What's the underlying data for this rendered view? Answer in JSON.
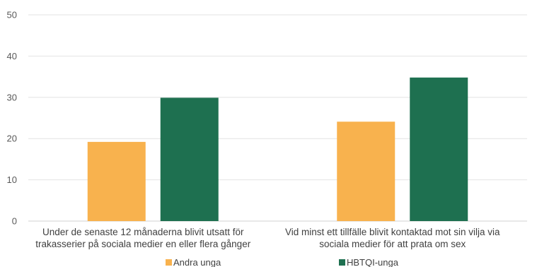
{
  "chart_data": {
    "type": "bar",
    "title": "",
    "xlabel": "",
    "ylabel": "",
    "ylim": [
      0,
      50
    ],
    "yticks": [
      0,
      10,
      20,
      30,
      40,
      50
    ],
    "grid": true,
    "legend": "bottom",
    "categories": [
      [
        "Under de senaste 12  månaderna blivit utsatt för",
        "trakasserier på sociala medier en eller flera gånger"
      ],
      [
        "Vid minst ett tillfälle blivit kontaktad mot sin vilja via",
        "sociala medier för att prata om sex"
      ]
    ],
    "series": [
      {
        "name": "Andra unga",
        "color": "#F8B24E",
        "values": [
          19.2,
          24.1
        ]
      },
      {
        "name": "HBTQI-unga",
        "color": "#1E7050",
        "values": [
          29.9,
          34.8
        ]
      }
    ]
  }
}
